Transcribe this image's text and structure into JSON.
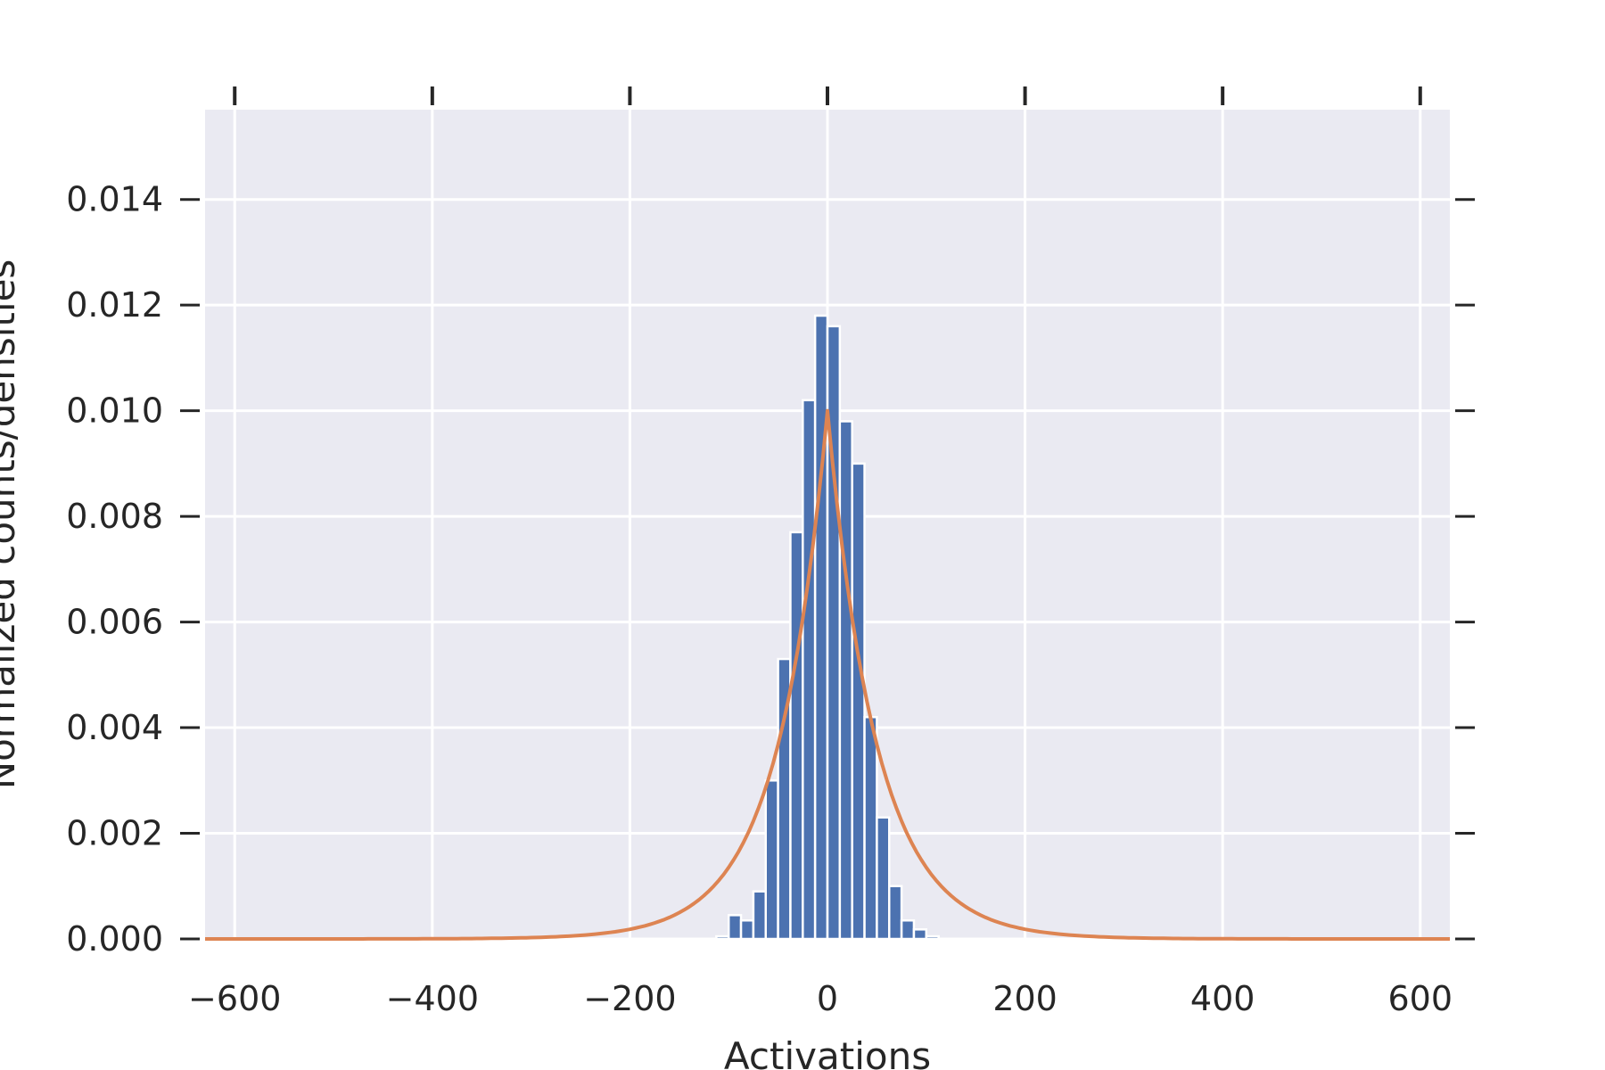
{
  "chart_data": {
    "type": "bar",
    "title": "",
    "xlabel": "Activations",
    "ylabel": "Normalized counts/densities",
    "xlim": [
      -630,
      630
    ],
    "ylim": [
      0,
      0.0157
    ],
    "x_ticks": [
      -600,
      -400,
      -200,
      0,
      200,
      400,
      600
    ],
    "x_tick_labels": [
      "−600",
      "−400",
      "−200",
      "0",
      "200",
      "400",
      "600"
    ],
    "y_ticks": [
      0,
      0.002,
      0.004,
      0.006,
      0.008,
      0.01,
      0.012,
      0.014
    ],
    "y_tick_labels": [
      "0.000",
      "0.002",
      "0.004",
      "0.006",
      "0.008",
      "0.010",
      "0.012",
      "0.014"
    ],
    "grid": true,
    "histogram": {
      "color": "#4c72b0",
      "bin_width": 12.5,
      "bin_left_edges": [
        -112.5,
        -100,
        -87.5,
        -75,
        -62.5,
        -50,
        -37.5,
        -25,
        -12.5,
        0,
        12.5,
        25,
        37.5,
        50,
        62.5,
        75,
        87.5,
        100
      ],
      "values": [
        5e-05,
        0.00045,
        0.00035,
        0.0009,
        0.003,
        0.0053,
        0.0077,
        0.0102,
        0.0118,
        0.0116,
        0.0098,
        0.009,
        0.0042,
        0.0023,
        0.001,
        0.00035,
        0.00018,
        5e-05
      ]
    },
    "density_curve": {
      "color": "#dd8452",
      "type": "laplace",
      "location": 0,
      "scale": 50,
      "peak": 0.01
    }
  }
}
